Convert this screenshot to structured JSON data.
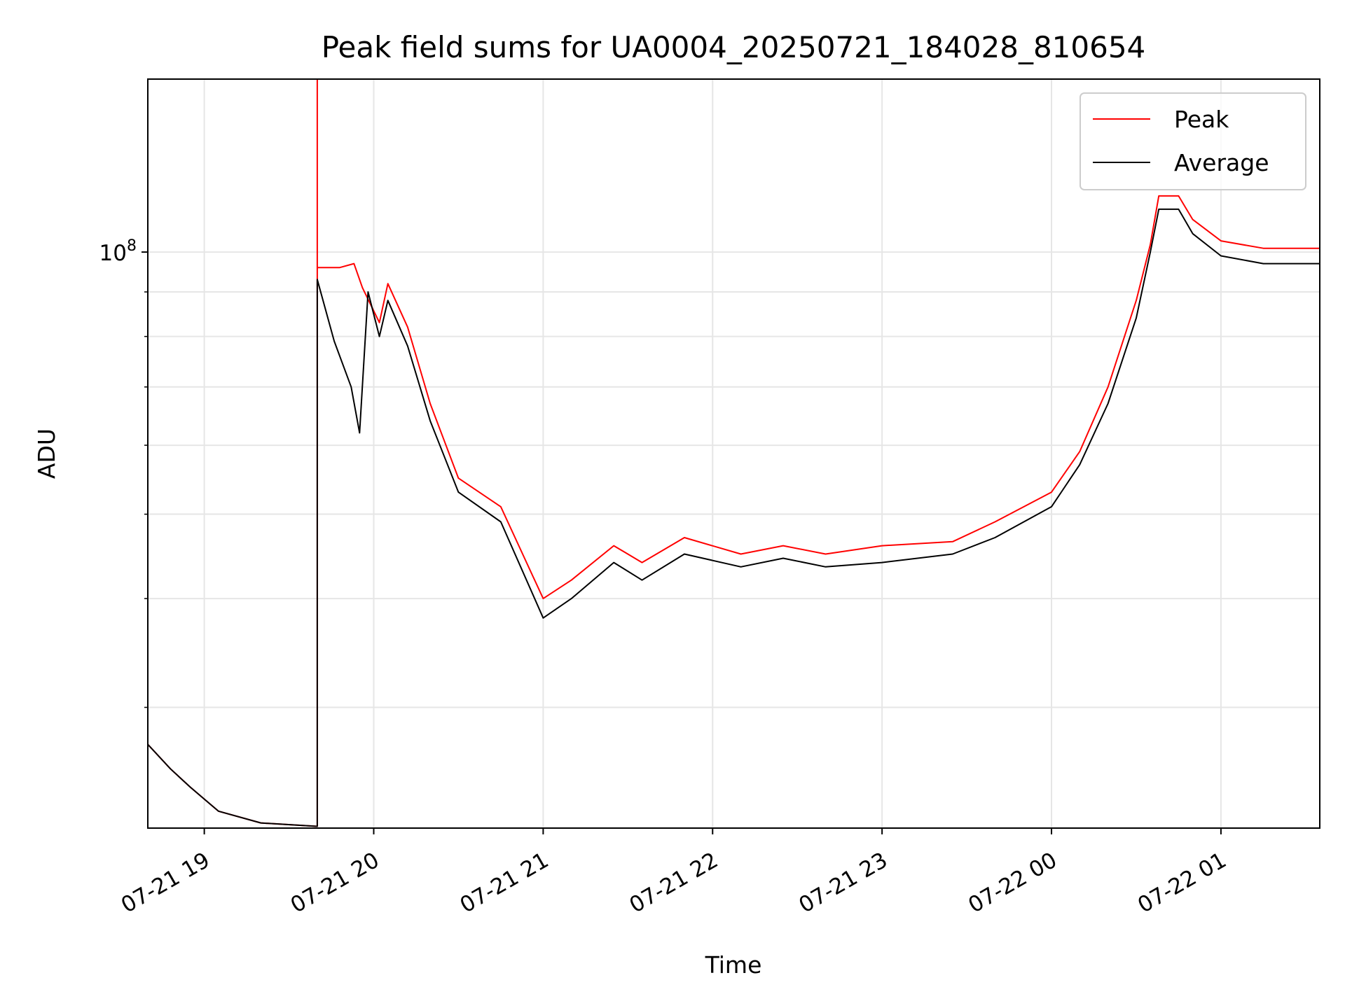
{
  "chart_data": {
    "type": "line",
    "title": "Peak field sums for UA0004_20250721_184028_810654",
    "xlabel": "Time",
    "ylabel": "ADU",
    "y_scale": "log",
    "grid": true,
    "legend_position": "upper right",
    "xlim": [
      "2025-07-21 18:40",
      "2025-07-22 01:35"
    ],
    "ylim": [
      21800000,
      158000000
    ],
    "x_tick_labels": [
      "07-21 19",
      "07-21 20",
      "07-21 21",
      "07-21 22",
      "07-21 23",
      "07-22 00",
      "07-22 01"
    ],
    "x_tick_values": [
      "2025-07-21 19:00",
      "2025-07-21 20:00",
      "2025-07-21 21:00",
      "2025-07-21 22:00",
      "2025-07-21 23:00",
      "2025-07-22 00:00",
      "2025-07-22 01:00"
    ],
    "y_tick_labels": [
      {
        "base": "10",
        "exp": "8",
        "value": 100000000
      }
    ],
    "y_minor_ticks": [
      30000000,
      40000000,
      50000000,
      60000000,
      70000000,
      80000000,
      90000000,
      200000000
    ],
    "series": [
      {
        "name": "Peak",
        "color": "#ff0000",
        "x": [
          "2025-07-21 18:40",
          "2025-07-21 18:48",
          "2025-07-21 18:55",
          "2025-07-21 19:05",
          "2025-07-21 19:20",
          "2025-07-21 19:40",
          "2025-07-21 19:40",
          "2025-07-21 19:40",
          "2025-07-21 19:48",
          "2025-07-21 19:53",
          "2025-07-21 19:56",
          "2025-07-21 20:02",
          "2025-07-21 20:05",
          "2025-07-21 20:12",
          "2025-07-21 20:20",
          "2025-07-21 20:30",
          "2025-07-21 20:45",
          "2025-07-21 21:00",
          "2025-07-21 21:10",
          "2025-07-21 21:25",
          "2025-07-21 21:35",
          "2025-07-21 21:50",
          "2025-07-21 22:10",
          "2025-07-21 22:25",
          "2025-07-21 22:40",
          "2025-07-21 23:00",
          "2025-07-21 23:25",
          "2025-07-21 23:40",
          "2025-07-22 00:00",
          "2025-07-22 00:10",
          "2025-07-22 00:20",
          "2025-07-22 00:30",
          "2025-07-22 00:35",
          "2025-07-22 00:38",
          "2025-07-22 00:45",
          "2025-07-22 00:50",
          "2025-07-22 01:00",
          "2025-07-22 01:15",
          "2025-07-22 01:35"
        ],
        "y": [
          27200000,
          25500000,
          24300000,
          22800000,
          22100000,
          21900000,
          158000000,
          96000000,
          96000000,
          97000000,
          91000000,
          83000000,
          92000000,
          82000000,
          67000000,
          55000000,
          51000000,
          40000000,
          42000000,
          46000000,
          44000000,
          47000000,
          45000000,
          46000000,
          45000000,
          46000000,
          46500000,
          49000000,
          53000000,
          59000000,
          70000000,
          88000000,
          102000000,
          116000000,
          116000000,
          109000000,
          103000000,
          101000000,
          101000000
        ]
      },
      {
        "name": "Average",
        "color": "#000000",
        "x": [
          "2025-07-21 18:40",
          "2025-07-21 18:48",
          "2025-07-21 18:55",
          "2025-07-21 19:05",
          "2025-07-21 19:20",
          "2025-07-21 19:40",
          "2025-07-21 19:40",
          "2025-07-21 19:46",
          "2025-07-21 19:52",
          "2025-07-21 19:55",
          "2025-07-21 19:58",
          "2025-07-21 20:02",
          "2025-07-21 20:05",
          "2025-07-21 20:12",
          "2025-07-21 20:20",
          "2025-07-21 20:30",
          "2025-07-21 20:45",
          "2025-07-21 21:00",
          "2025-07-21 21:10",
          "2025-07-21 21:25",
          "2025-07-21 21:35",
          "2025-07-21 21:50",
          "2025-07-21 22:10",
          "2025-07-21 22:25",
          "2025-07-21 22:40",
          "2025-07-21 23:00",
          "2025-07-21 23:25",
          "2025-07-21 23:40",
          "2025-07-22 00:00",
          "2025-07-22 00:10",
          "2025-07-22 00:20",
          "2025-07-22 00:30",
          "2025-07-22 00:35",
          "2025-07-22 00:38",
          "2025-07-22 00:45",
          "2025-07-22 00:50",
          "2025-07-22 01:00",
          "2025-07-22 01:15",
          "2025-07-22 01:35"
        ],
        "y": [
          27200000,
          25500000,
          24300000,
          22800000,
          22100000,
          21900000,
          93000000,
          79000000,
          70000000,
          62000000,
          90000000,
          80000000,
          88000000,
          78000000,
          64000000,
          53000000,
          49000000,
          38000000,
          40000000,
          44000000,
          42000000,
          45000000,
          43500000,
          44500000,
          43500000,
          44000000,
          45000000,
          47000000,
          51000000,
          57000000,
          67000000,
          84000000,
          100000000,
          112000000,
          112000000,
          105000000,
          99000000,
          97000000,
          97000000
        ]
      }
    ]
  }
}
